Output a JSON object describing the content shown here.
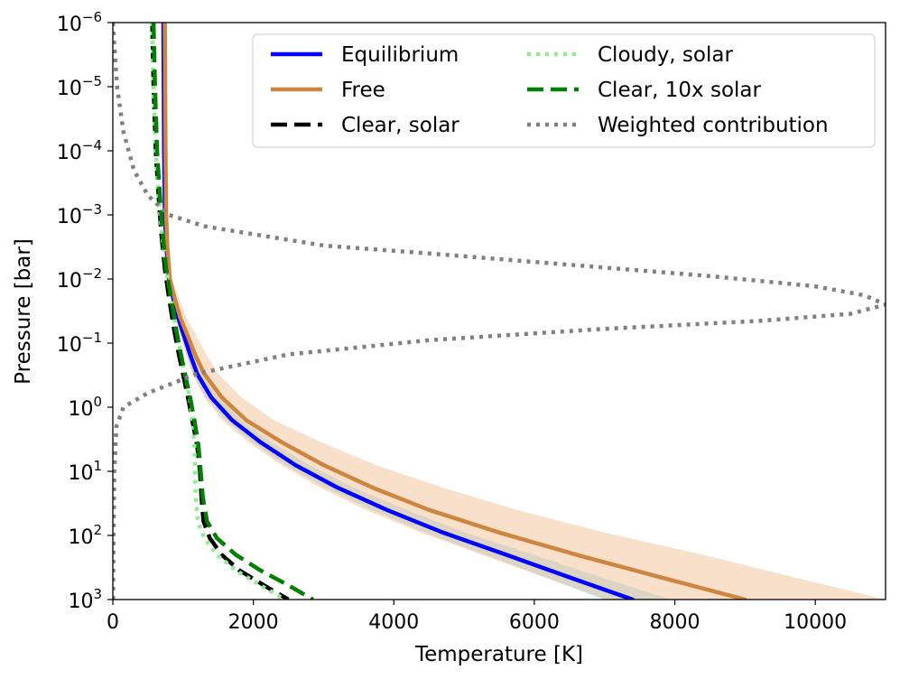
{
  "chart_data": {
    "type": "line",
    "xlabel": "Temperature [K]",
    "ylabel": "Pressure [bar]",
    "xlim": [
      0,
      11000
    ],
    "ylim": [
      1000,
      1e-06
    ],
    "yscale": "log",
    "y_inverted": true,
    "x_ticks": [
      "0",
      "2000",
      "4000",
      "6000",
      "8000",
      "10000"
    ],
    "y_ticks": [
      {
        "base": "10",
        "exp": "−6",
        "value": 1e-06
      },
      {
        "base": "10",
        "exp": "−5",
        "value": 1e-05
      },
      {
        "base": "10",
        "exp": "−4",
        "value": 0.0001
      },
      {
        "base": "10",
        "exp": "−3",
        "value": 0.001
      },
      {
        "base": "10",
        "exp": "−2",
        "value": 0.01
      },
      {
        "base": "10",
        "exp": "−1",
        "value": 0.1
      },
      {
        "base": "10",
        "exp": "0",
        "value": 1
      },
      {
        "base": "10",
        "exp": "1",
        "value": 10
      },
      {
        "base": "10",
        "exp": "2",
        "value": 100
      },
      {
        "base": "10",
        "exp": "3",
        "value": 1000
      }
    ],
    "grid": false,
    "legend_position": "top-right",
    "legend_columns": 2,
    "series": [
      {
        "name": "Equilibrium",
        "color": "#0000ff",
        "style": "solid",
        "band_color": "#87ceeb",
        "x": [
          720,
          725,
          730,
          740,
          760,
          800,
          860,
          930,
          1000,
          1100,
          1200,
          1400,
          1700,
          2100,
          2600,
          3200,
          3900,
          4700,
          5600,
          6500,
          7400
        ],
        "y": [
          1e-06,
          1e-05,
          0.0001,
          0.001,
          0.003,
          0.01,
          0.02,
          0.04,
          0.07,
          0.15,
          0.3,
          0.7,
          1.6,
          3.5,
          8,
          18,
          40,
          90,
          200,
          450,
          1000
        ],
        "band_lower": [
          700,
          705,
          710,
          720,
          740,
          780,
          840,
          900,
          960,
          1050,
          1140,
          1320,
          1600,
          1980,
          2450,
          3020,
          3680,
          4440,
          5300,
          6150,
          7000
        ],
        "band_upper": [
          740,
          745,
          750,
          760,
          780,
          820,
          880,
          960,
          1040,
          1150,
          1270,
          1500,
          1830,
          2260,
          2800,
          3430,
          4180,
          5020,
          5980,
          6950,
          7950
        ]
      },
      {
        "name": "Free",
        "color": "#cd853f",
        "style": "solid",
        "band_color": "#f5cba7",
        "x": [
          740,
          745,
          750,
          760,
          775,
          810,
          880,
          960,
          1050,
          1170,
          1300,
          1550,
          1900,
          2400,
          3000,
          3700,
          4500,
          5500,
          6600,
          7800,
          9000
        ],
        "y": [
          1e-06,
          1e-05,
          0.0001,
          0.001,
          0.003,
          0.01,
          0.02,
          0.04,
          0.07,
          0.15,
          0.3,
          0.7,
          1.6,
          3.5,
          8,
          18,
          40,
          90,
          200,
          450,
          1000
        ],
        "band_lower": [
          720,
          725,
          730,
          740,
          750,
          780,
          830,
          890,
          950,
          1040,
          1130,
          1300,
          1560,
          1930,
          2400,
          2950,
          3600,
          4380,
          5250,
          6150,
          7050
        ],
        "band_upper": [
          760,
          765,
          770,
          780,
          800,
          850,
          940,
          1050,
          1170,
          1330,
          1500,
          1830,
          2300,
          2960,
          3750,
          4700,
          5750,
          7000,
          8400,
          9700,
          11000
        ]
      },
      {
        "name": "Clear, solar",
        "color": "#000000",
        "style": "dashed",
        "x": [
          560,
          580,
          610,
          650,
          690,
          740,
          800,
          870,
          940,
          1010,
          1080,
          1140,
          1200,
          1240,
          1260,
          1290,
          1380,
          1550,
          1800,
          2150,
          2500
        ],
        "y": [
          1e-06,
          1e-05,
          0.0001,
          0.0005,
          0.002,
          0.007,
          0.02,
          0.06,
          0.15,
          0.35,
          0.8,
          1.8,
          4,
          10,
          25,
          60,
          110,
          200,
          350,
          600,
          1000
        ]
      },
      {
        "name": "Cloudy, solar",
        "color": "#90ee90",
        "style": "dotted",
        "x": [
          560,
          580,
          610,
          650,
          700,
          760,
          830,
          900,
          970,
          1040,
          1100,
          1140,
          1160,
          1170,
          1180,
          1210,
          1300,
          1480,
          1750,
          2100,
          2450
        ],
        "y": [
          1e-06,
          1e-05,
          0.0001,
          0.0005,
          0.002,
          0.007,
          0.02,
          0.06,
          0.15,
          0.35,
          0.8,
          1.8,
          4,
          10,
          25,
          60,
          110,
          200,
          350,
          600,
          1000
        ]
      },
      {
        "name": "Clear, 10x solar",
        "color": "#008000",
        "style": "dashed",
        "x": [
          580,
          600,
          630,
          670,
          710,
          760,
          830,
          900,
          970,
          1040,
          1110,
          1170,
          1220,
          1250,
          1280,
          1340,
          1480,
          1750,
          2100,
          2500,
          2850
        ],
        "y": [
          1e-06,
          1e-05,
          0.0001,
          0.0005,
          0.002,
          0.007,
          0.02,
          0.06,
          0.15,
          0.35,
          0.8,
          1.8,
          4,
          10,
          25,
          60,
          110,
          200,
          350,
          600,
          1000
        ]
      },
      {
        "name": "Weighted contribution",
        "color": "#808080",
        "style": "dotted",
        "x": [
          0,
          60,
          150,
          300,
          500,
          800,
          1300,
          2000,
          3000,
          4500,
          6500,
          8500,
          10000,
          10700,
          11000,
          10500,
          9200,
          7000,
          4500,
          2500,
          1200,
          500,
          150,
          50,
          20,
          10,
          5,
          3
        ],
        "y": [
          1e-06,
          1e-05,
          5e-05,
          0.0002,
          0.0005,
          0.001,
          0.0015,
          0.002,
          0.003,
          0.004,
          0.006,
          0.009,
          0.013,
          0.018,
          0.025,
          0.035,
          0.045,
          0.06,
          0.09,
          0.15,
          0.3,
          0.6,
          1.0,
          2,
          10,
          100,
          500,
          1000
        ]
      }
    ]
  }
}
